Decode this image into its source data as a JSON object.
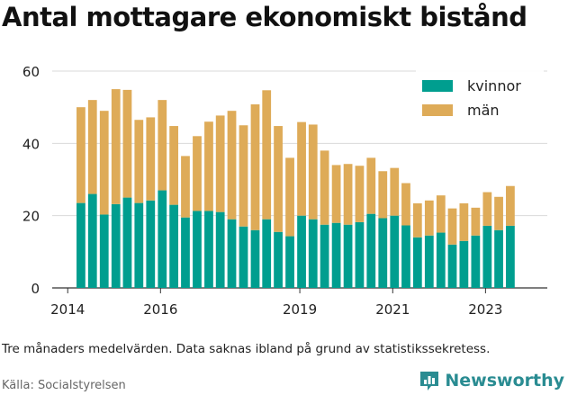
{
  "title": "Antal mottagare ekonomiskt bistånd",
  "note": "Tre månaders medelvärden. Data saknas ibland på grund av statistikssekretess.",
  "source": "Källa: Socialstyrelsen",
  "brand": {
    "name": "Newsworthy",
    "icon": "newsworthy-logo-icon",
    "color": "#2a8c92"
  },
  "colors": {
    "kvinnor": "#009e8f",
    "man": "#deab58",
    "grid": "#d9d9d9",
    "axis": "#333333"
  },
  "chart_data": {
    "type": "bar",
    "stacked": true,
    "x_axis_type": "date",
    "grid": "horizontal",
    "legend_placement": "top-right",
    "ylim": [
      0,
      60
    ],
    "yticks": [
      0,
      20,
      40,
      60
    ],
    "xtick_labels": [
      "2014",
      "2016",
      "2019",
      "2021",
      "2023"
    ],
    "xlim": [
      "2013-09-01",
      "2024-05-01"
    ],
    "x": [
      "2014-04",
      "2014-07",
      "2014-10",
      "2015-01",
      "2015-04",
      "2015-07",
      "2015-10",
      "2016-01",
      "2016-04",
      "2016-07",
      "2016-10",
      "2017-01",
      "2017-04",
      "2017-07",
      "2017-10",
      "2018-01",
      "2018-04",
      "2018-07",
      "2018-10",
      "2019-01",
      "2019-04",
      "2019-07",
      "2019-10",
      "2020-01",
      "2020-04",
      "2020-07",
      "2020-10",
      "2021-01",
      "2021-04",
      "2021-07",
      "2021-10",
      "2022-01",
      "2022-04",
      "2022-07",
      "2022-10",
      "2023-01",
      "2023-04",
      "2023-07",
      "2023-10"
    ],
    "series": [
      {
        "name": "kvinnor",
        "color": "#009e8f",
        "values": [
          23.5,
          26,
          20.3,
          23.2,
          25,
          23.5,
          24.2,
          27,
          23,
          19.5,
          21.3,
          21.3,
          21,
          19,
          17,
          16,
          19,
          15.5,
          14.3,
          20,
          19,
          17.5,
          18,
          17.5,
          18.2,
          20.5,
          19.3,
          20,
          17.3,
          14,
          14.5,
          15.3,
          12,
          13,
          14.5,
          17.2,
          16,
          17.2,
          0
        ]
      },
      {
        "name": "män",
        "color": "#deab58",
        "values": [
          26.5,
          26,
          28.7,
          31.8,
          29.8,
          23,
          23,
          25,
          21.8,
          17,
          20.7,
          24.7,
          26.7,
          30,
          28,
          34.8,
          35.7,
          29.3,
          21.7,
          25.9,
          26.2,
          20.5,
          16,
          16.8,
          15.6,
          15.5,
          13,
          13.2,
          11.7,
          9.4,
          9.7,
          10.3,
          10,
          10.4,
          7.7,
          9.3,
          9.2,
          11,
          0
        ]
      }
    ]
  }
}
